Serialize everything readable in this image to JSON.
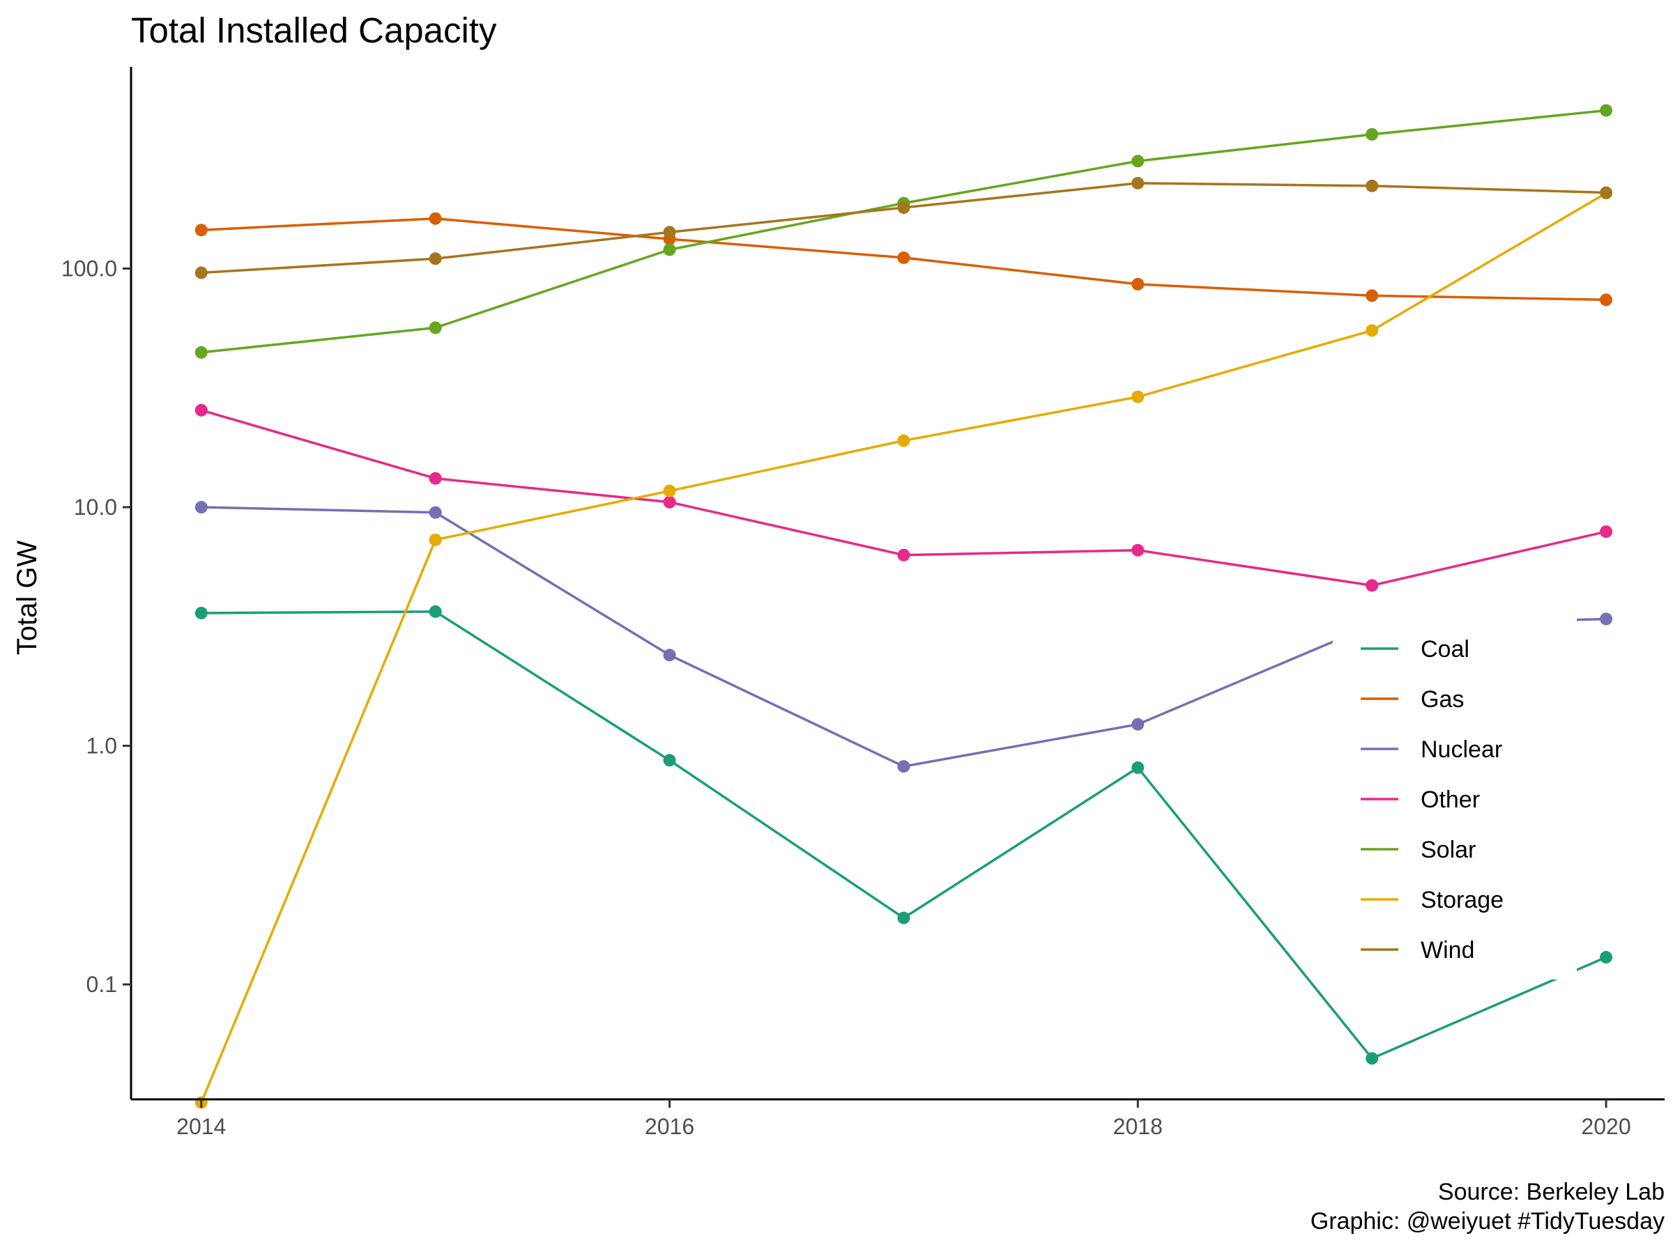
{
  "chart_data": {
    "type": "line",
    "title": "Total Installed Capacity",
    "xlabel": "",
    "ylabel": "Total GW",
    "y_scale": "log10",
    "ylim": [
      0.033,
      700
    ],
    "xlim": [
      2013.7,
      2020.25
    ],
    "x": [
      2014,
      2015,
      2016,
      2017,
      2018,
      2019,
      2020
    ],
    "x_ticks": [
      "2014",
      "2016",
      "2018",
      "2020"
    ],
    "y_ticks": [
      "0.1",
      "1.0",
      "10.0",
      "100.0"
    ],
    "grid": false,
    "legend_position": "inside-right",
    "series": [
      {
        "name": "Coal",
        "color": "#1B9E77",
        "values": [
          3.6,
          3.65,
          0.87,
          0.19,
          0.81,
          0.049,
          0.13
        ]
      },
      {
        "name": "Gas",
        "color": "#D95F02",
        "values": [
          145,
          162,
          133,
          111,
          86,
          77,
          74
        ]
      },
      {
        "name": "Nuclear",
        "color": "#7570B3",
        "values": [
          10.0,
          9.5,
          2.4,
          0.82,
          1.23,
          3.2,
          3.4
        ]
      },
      {
        "name": "Other",
        "color": "#E7298A",
        "values": [
          25.5,
          13.2,
          10.5,
          6.3,
          6.6,
          4.7,
          7.9
        ]
      },
      {
        "name": "Solar",
        "color": "#66A61E",
        "values": [
          44.5,
          56.5,
          120,
          188,
          282,
          365,
          460
        ]
      },
      {
        "name": "Storage",
        "color": "#E6AB02",
        "values": [
          0.032,
          7.3,
          11.7,
          19,
          29,
          55,
          207
        ]
      },
      {
        "name": "Wind",
        "color": "#A6761D",
        "values": [
          96,
          110,
          142,
          180,
          228,
          222,
          208
        ]
      }
    ]
  },
  "caption": {
    "line1": "Source: Berkeley Lab",
    "line2": "Graphic: @weiyuet #TidyTuesday"
  }
}
